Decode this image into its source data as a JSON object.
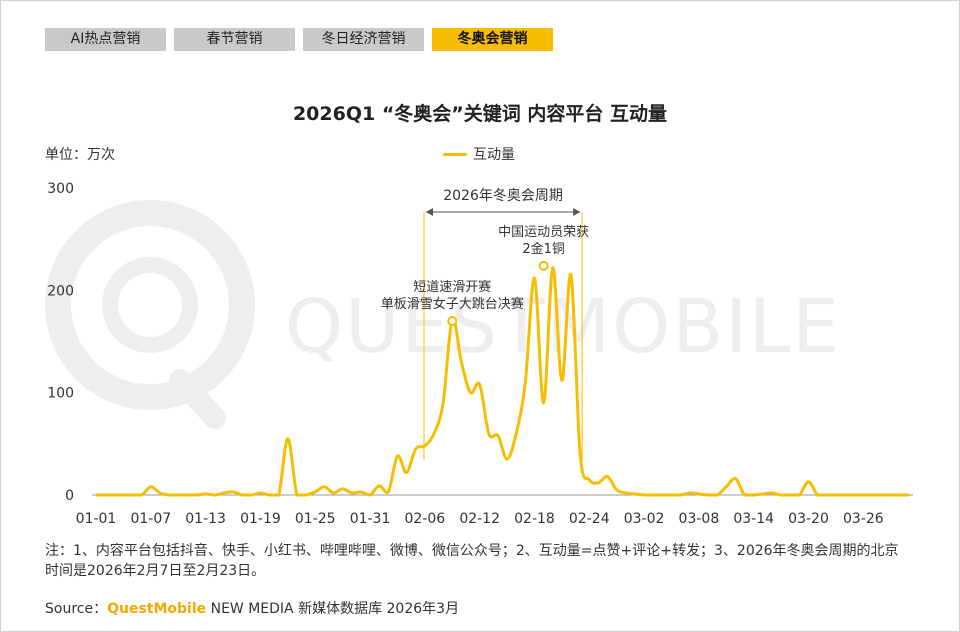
{
  "tabs": [
    {
      "label": "AI热点营销",
      "active": false
    },
    {
      "label": "春节营销",
      "active": false
    },
    {
      "label": "冬日经济营销",
      "active": false
    },
    {
      "label": "冬奥会营销",
      "active": true
    }
  ],
  "unit_label": "单位：万次",
  "watermark": "QUESTMOBILE",
  "chart_data": {
    "type": "line",
    "title": "2026Q1 “冬奥会”关键词 内容平台 互动量",
    "series": [
      {
        "name": "互动量",
        "color": "#f7bd00",
        "x": [
          "01-01",
          "01-02",
          "01-03",
          "01-04",
          "01-05",
          "01-06",
          "01-07",
          "01-08",
          "01-09",
          "01-10",
          "01-11",
          "01-12",
          "01-13",
          "01-14",
          "01-15",
          "01-16",
          "01-17",
          "01-18",
          "01-19",
          "01-20",
          "01-21",
          "01-22",
          "01-23",
          "01-24",
          "01-25",
          "01-26",
          "01-27",
          "01-28",
          "01-29",
          "01-30",
          "01-31",
          "02-01",
          "02-02",
          "02-03",
          "02-04",
          "02-05",
          "02-06",
          "02-07",
          "02-08",
          "02-09",
          "02-10",
          "02-11",
          "02-12",
          "02-13",
          "02-14",
          "02-15",
          "02-16",
          "02-17",
          "02-18",
          "02-19",
          "02-20",
          "02-21",
          "02-22",
          "02-23",
          "02-24",
          "02-25",
          "02-26",
          "02-27",
          "02-28",
          "03-01",
          "03-02",
          "03-03",
          "03-04",
          "03-05",
          "03-06",
          "03-07",
          "03-08",
          "03-09",
          "03-10",
          "03-11",
          "03-12",
          "03-13",
          "03-14",
          "03-15",
          "03-16",
          "03-17",
          "03-18",
          "03-19",
          "03-20",
          "03-21",
          "03-22",
          "03-23",
          "03-24",
          "03-25",
          "03-26",
          "03-27",
          "03-28",
          "03-29",
          "03-30",
          "03-31"
        ],
        "values": [
          0,
          0,
          0,
          0,
          0,
          0,
          8,
          2,
          0,
          0,
          0,
          0,
          1,
          0,
          2,
          3,
          0,
          0,
          2,
          0,
          0,
          55,
          0,
          0,
          3,
          8,
          2,
          6,
          2,
          3,
          0,
          9,
          3,
          38,
          22,
          45,
          48,
          60,
          90,
          172,
          130,
          100,
          108,
          60,
          58,
          35,
          60,
          110,
          212,
          90,
          222,
          112,
          215,
          40,
          15,
          12,
          18,
          5,
          2,
          1,
          0,
          0,
          0,
          0,
          0,
          2,
          1,
          0,
          0,
          8,
          16,
          0,
          0,
          1,
          2,
          0,
          0,
          0,
          13,
          0,
          0,
          0,
          0,
          0,
          0,
          0,
          0,
          0,
          0,
          0
        ]
      }
    ],
    "xticks": [
      "01-01",
      "01-07",
      "01-13",
      "01-19",
      "01-25",
      "01-31",
      "02-06",
      "02-12",
      "02-18",
      "02-24",
      "03-02",
      "03-08",
      "03-14",
      "03-20",
      "03-26"
    ],
    "yticks": [
      0,
      100,
      200,
      300
    ],
    "ylim": [
      0,
      300
    ],
    "period": {
      "label": "2026年冬奥会周期",
      "start": "02-07",
      "end": "02-23"
    },
    "annotations": [
      {
        "x": "02-09",
        "value": 170,
        "lines": [
          "短道速滑开赛",
          "单板滑雪女子大跳台决赛"
        ]
      },
      {
        "x": "02-19",
        "value": 224,
        "lines": [
          "中国运动员荣获",
          "2金1铜"
        ]
      }
    ],
    "grid": false,
    "legend_position": "top-center"
  },
  "note": "注：1、内容平台包括抖音、快手、小红书、哔哩哔哩、微博、微信公众号；2、互动量=点赞+评论+转发；3、2026年冬奥会周期的北京时间是2026年2月7日至2月23日。",
  "source": {
    "prefix": "Source：",
    "brand": "QuestMobile",
    "suffix": " NEW MEDIA 新媒体数据库 2026年3月"
  }
}
